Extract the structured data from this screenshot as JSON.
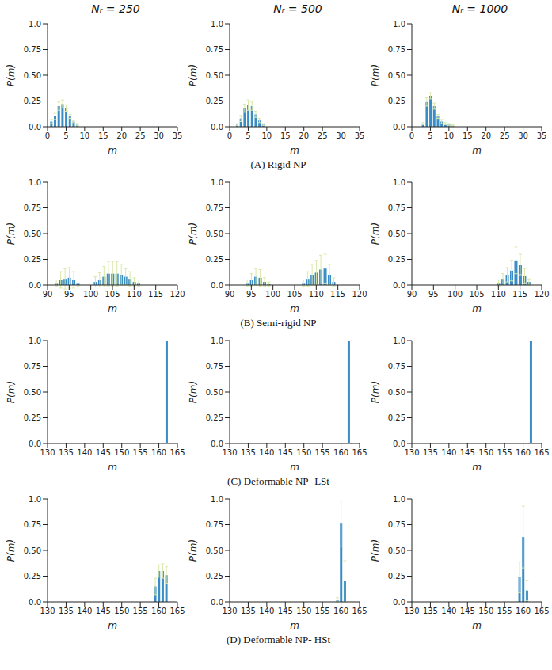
{
  "column_titles": [
    "Nᵣ = 250",
    "Nᵣ = 500",
    "Nᵣ = 1000"
  ],
  "row_captions": [
    "(A) Rigid NP",
    "(B) Semi-rigid NP",
    "(C) Deformable NP- LSt",
    "(D) Deformable NP- HSt"
  ],
  "chart_data": [
    {
      "type": "bar",
      "x_label": "m",
      "y_label": "P(m)",
      "color": "#3a8dc4",
      "error_color": "#d8e8a8",
      "x": [
        1,
        2,
        3,
        4,
        5,
        6,
        7,
        8
      ],
      "values": [
        0.05,
        0.1,
        0.2,
        0.22,
        0.18,
        0.1,
        0.05,
        0.02
      ],
      "errors": [
        0.02,
        0.03,
        0.04,
        0.04,
        0.03,
        0.02,
        0.01,
        0.01
      ],
      "xlim": [
        0,
        35
      ],
      "xticks": [
        0,
        5,
        10,
        15,
        20,
        25,
        30,
        35
      ],
      "ylim": [
        0,
        1
      ],
      "yticks": [
        {
          "value": 0,
          "label": "0.0"
        },
        0.25,
        {
          "value": 0.5,
          "label": "0.50"
        },
        0.75,
        {
          "value": 1,
          "label": "1.0"
        }
      ]
    },
    {
      "type": "bar",
      "x_label": "m",
      "y_label": "P(m)",
      "color": "#3a8dc4",
      "error_color": "#d8e8a8",
      "x": [
        2,
        3,
        4,
        5,
        6,
        7,
        8,
        9
      ],
      "values": [
        0.02,
        0.08,
        0.18,
        0.21,
        0.2,
        0.12,
        0.06,
        0.02
      ],
      "errors": [
        0.01,
        0.03,
        0.04,
        0.05,
        0.04,
        0.03,
        0.02,
        0.01
      ],
      "xlim": [
        0,
        35
      ],
      "xticks": [
        0,
        5,
        10,
        15,
        20,
        25,
        30,
        35
      ],
      "ylim": [
        0,
        1
      ],
      "yticks": [
        {
          "value": 0,
          "label": "0.0"
        },
        0.25,
        {
          "value": 0.5,
          "label": "0.50"
        },
        0.75,
        {
          "value": 1,
          "label": "1.0"
        }
      ]
    },
    {
      "type": "bar",
      "x_label": "m",
      "y_label": "P(m)",
      "color": "#3a8dc4",
      "error_color": "#d8e8a8",
      "x": [
        3,
        4,
        5,
        6,
        7,
        8,
        9,
        10,
        11
      ],
      "values": [
        0.03,
        0.24,
        0.3,
        0.2,
        0.1,
        0.05,
        0.03,
        0.02,
        0.01
      ],
      "errors": [
        0.01,
        0.04,
        0.03,
        0.03,
        0.02,
        0.02,
        0.01,
        0.01,
        0.01
      ],
      "xlim": [
        0,
        35
      ],
      "xticks": [
        0,
        5,
        10,
        15,
        20,
        25,
        30,
        35
      ],
      "ylim": [
        0,
        1
      ],
      "yticks": [
        {
          "value": 0,
          "label": "0.0"
        },
        0.25,
        {
          "value": 0.5,
          "label": "0.50"
        },
        0.75,
        {
          "value": 1,
          "label": "1.0"
        }
      ]
    },
    {
      "type": "bar",
      "x_label": "m",
      "y_label": "P(m)",
      "color": "#3a8dc4",
      "error_color": "#d8e8a8",
      "x": [
        92,
        93,
        94,
        95,
        96,
        97,
        101,
        102,
        103,
        104,
        105,
        106,
        107,
        108,
        109,
        110,
        111
      ],
      "values": [
        0.02,
        0.05,
        0.06,
        0.07,
        0.05,
        0.02,
        0.03,
        0.05,
        0.08,
        0.11,
        0.11,
        0.11,
        0.1,
        0.08,
        0.06,
        0.03,
        0.02
      ],
      "errors": [
        0.03,
        0.08,
        0.1,
        0.1,
        0.08,
        0.03,
        0.05,
        0.07,
        0.1,
        0.12,
        0.12,
        0.12,
        0.1,
        0.08,
        0.07,
        0.04,
        0.03
      ],
      "xlim": [
        90,
        120
      ],
      "xticks": [
        90,
        95,
        100,
        105,
        110,
        115,
        120
      ],
      "ylim": [
        0,
        1
      ],
      "yticks": [
        {
          "value": 0,
          "label": "0.0"
        },
        0.25,
        {
          "value": 0.5,
          "label": "0.50"
        },
        0.75,
        {
          "value": 1,
          "label": "1.0"
        }
      ]
    },
    {
      "type": "bar",
      "x_label": "m",
      "y_label": "P(m)",
      "color": "#3a8dc4",
      "error_color": "#d8e8a8",
      "x": [
        94,
        95,
        96,
        97,
        98,
        99,
        107,
        108,
        109,
        110,
        111,
        112,
        113,
        114
      ],
      "values": [
        0.02,
        0.05,
        0.08,
        0.07,
        0.03,
        0.01,
        0.02,
        0.06,
        0.1,
        0.12,
        0.15,
        0.16,
        0.1,
        0.03
      ],
      "errors": [
        0.03,
        0.06,
        0.08,
        0.08,
        0.04,
        0.02,
        0.03,
        0.07,
        0.1,
        0.12,
        0.14,
        0.14,
        0.1,
        0.04
      ],
      "xlim": [
        90,
        120
      ],
      "xticks": [
        90,
        95,
        100,
        105,
        110,
        115,
        120
      ],
      "ylim": [
        0,
        1
      ],
      "yticks": [
        {
          "value": 0,
          "label": "0.0"
        },
        0.25,
        {
          "value": 0.5,
          "label": "0.50"
        },
        0.75,
        {
          "value": 1,
          "label": "1.0"
        }
      ]
    },
    {
      "type": "bar",
      "x_label": "m",
      "y_label": "P(m)",
      "color": "#3a8dc4",
      "error_color": "#d8e8a8",
      "x": [
        110,
        111,
        112,
        113,
        114,
        115,
        116,
        117
      ],
      "values": [
        0.02,
        0.06,
        0.1,
        0.14,
        0.24,
        0.2,
        0.09,
        0.03
      ],
      "errors": [
        0.03,
        0.05,
        0.07,
        0.1,
        0.13,
        0.1,
        0.07,
        0.03
      ],
      "xlim": [
        90,
        120
      ],
      "xticks": [
        90,
        95,
        100,
        105,
        110,
        115,
        120
      ],
      "ylim": [
        0,
        1
      ],
      "yticks": [
        {
          "value": 0,
          "label": "0.0"
        },
        0.25,
        {
          "value": 0.5,
          "label": "0.50"
        },
        0.75,
        {
          "value": 1,
          "label": "1.0"
        }
      ]
    },
    {
      "type": "bar",
      "x_label": "m",
      "y_label": "P(m)",
      "color": "#3a8dc4",
      "error_color": "#d8e8a8",
      "x": [
        162
      ],
      "values": [
        1.0
      ],
      "errors": [
        0
      ],
      "xlim": [
        130,
        165
      ],
      "xticks": [
        130,
        135,
        140,
        145,
        150,
        155,
        160,
        165
      ],
      "ylim": [
        0,
        1
      ],
      "yticks": [
        {
          "value": 0,
          "label": "0.0"
        },
        0.25,
        {
          "value": 0.5,
          "label": "0.50"
        },
        0.75,
        {
          "value": 1,
          "label": "1.0"
        }
      ]
    },
    {
      "type": "bar",
      "x_label": "m",
      "y_label": "P(m)",
      "color": "#3a8dc4",
      "error_color": "#d8e8a8",
      "x": [
        162
      ],
      "values": [
        1.0
      ],
      "errors": [
        0
      ],
      "xlim": [
        130,
        165
      ],
      "xticks": [
        130,
        135,
        140,
        145,
        150,
        155,
        160,
        165
      ],
      "ylim": [
        0,
        1
      ],
      "yticks": [
        {
          "value": 0,
          "label": "0.0"
        },
        0.25,
        {
          "value": 0.5,
          "label": "0.50"
        },
        0.75,
        {
          "value": 1,
          "label": "1.0"
        }
      ]
    },
    {
      "type": "bar",
      "x_label": "m",
      "y_label": "P(m)",
      "color": "#3a8dc4",
      "error_color": "#d8e8a8",
      "x": [
        162
      ],
      "values": [
        1.0
      ],
      "errors": [
        0
      ],
      "xlim": [
        130,
        165
      ],
      "xticks": [
        130,
        135,
        140,
        145,
        150,
        155,
        160,
        165
      ],
      "ylim": [
        0,
        1
      ],
      "yticks": [
        {
          "value": 0,
          "label": "0.0"
        },
        0.25,
        {
          "value": 0.5,
          "label": "0.50"
        },
        0.75,
        {
          "value": 1,
          "label": "1.0"
        }
      ]
    },
    {
      "type": "bar",
      "x_label": "m",
      "y_label": "P(m)",
      "color": "#3a8dc4",
      "error_color": "#d8e8a8",
      "x": [
        159,
        160,
        161,
        162
      ],
      "values": [
        0.15,
        0.3,
        0.3,
        0.26
      ],
      "errors": [
        0.08,
        0.06,
        0.07,
        0.08
      ],
      "xlim": [
        130,
        165
      ],
      "xticks": [
        130,
        135,
        140,
        145,
        150,
        155,
        160,
        165
      ],
      "ylim": [
        0,
        1
      ],
      "yticks": [
        {
          "value": 0,
          "label": "0.0"
        },
        0.25,
        {
          "value": 0.5,
          "label": "0.50"
        },
        0.75,
        {
          "value": 1,
          "label": "1.0"
        }
      ]
    },
    {
      "type": "bar",
      "x_label": "m",
      "y_label": "P(m)",
      "color": "#3a8dc4",
      "error_color": "#d8e8a8",
      "x": [
        159,
        160,
        161
      ],
      "values": [
        0.02,
        0.76,
        0.2
      ],
      "errors": [
        0.02,
        0.22,
        0.2
      ],
      "xlim": [
        130,
        165
      ],
      "xticks": [
        130,
        135,
        140,
        145,
        150,
        155,
        160,
        165
      ],
      "ylim": [
        0,
        1
      ],
      "yticks": [
        {
          "value": 0,
          "label": "0.0"
        },
        0.25,
        {
          "value": 0.5,
          "label": "0.50"
        },
        0.75,
        {
          "value": 1,
          "label": "1.0"
        }
      ]
    },
    {
      "type": "bar",
      "x_label": "m",
      "y_label": "P(m)",
      "color": "#3a8dc4",
      "error_color": "#d8e8a8",
      "x": [
        159,
        160,
        161
      ],
      "values": [
        0.24,
        0.63,
        0.11
      ],
      "errors": [
        0.15,
        0.3,
        0.1
      ],
      "xlim": [
        130,
        165
      ],
      "xticks": [
        130,
        135,
        140,
        145,
        150,
        155,
        160,
        165
      ],
      "ylim": [
        0,
        1
      ],
      "yticks": [
        {
          "value": 0,
          "label": "0.0"
        },
        0.25,
        {
          "value": 0.5,
          "label": "0.50"
        },
        0.75,
        {
          "value": 1,
          "label": "1.0"
        }
      ]
    }
  ]
}
